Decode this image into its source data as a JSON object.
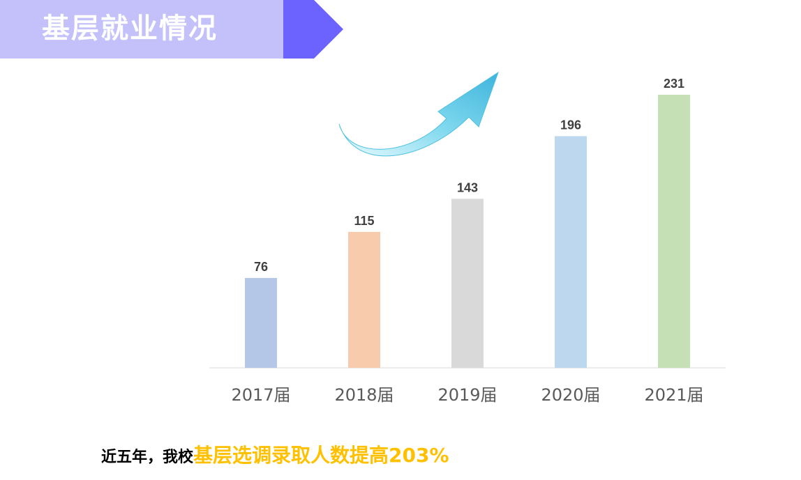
{
  "header": {
    "title": "基层就业情况",
    "accent_color": "#6c63ff",
    "banner_color": "#c3c0fa"
  },
  "chart_data": {
    "type": "bar",
    "categories": [
      "2017届",
      "2018届",
      "2019届",
      "2020届",
      "2021届"
    ],
    "values": [
      76,
      115,
      143,
      196,
      231
    ],
    "colors": [
      "#b4c7e7",
      "#f8cbad",
      "#d9d9d9",
      "#bdd7ee",
      "#c5e0b4"
    ],
    "data_labels": true,
    "grid": false,
    "ylim": [
      0,
      231
    ],
    "decoration": "upward-curved-arrow-icon"
  },
  "summary": {
    "prefix": "近五年，我校",
    "highlight": "基层选调录取人数提高203%",
    "highlight_color": "#ffc000"
  }
}
